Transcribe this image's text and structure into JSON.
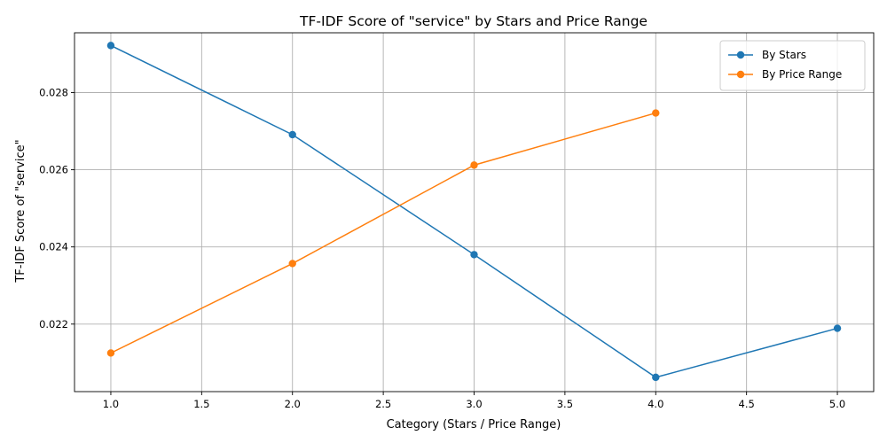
{
  "chart_data": {
    "type": "line",
    "title": "TF-IDF Score of \"service\" by Stars and Price Range",
    "xlabel": "Category (Stars / Price Range)",
    "ylabel": "TF-IDF Score of \"service\"",
    "xlim": [
      0.8,
      5.2
    ],
    "ylim": [
      0.02025,
      0.02955
    ],
    "xticks": [
      1.0,
      1.5,
      2.0,
      2.5,
      3.0,
      3.5,
      4.0,
      4.5,
      5.0
    ],
    "xtick_labels": [
      "1.0",
      "1.5",
      "2.0",
      "2.5",
      "3.0",
      "3.5",
      "4.0",
      "4.5",
      "5.0"
    ],
    "yticks": [
      0.022,
      0.024,
      0.026,
      0.028
    ],
    "ytick_labels": [
      "0.022",
      "0.024",
      "0.026",
      "0.028"
    ],
    "grid": true,
    "legend_position": "top-right",
    "series": [
      {
        "name": "By Stars",
        "color": "#1f77b4",
        "x": [
          1,
          2,
          3,
          4,
          5
        ],
        "y": [
          0.02922,
          0.02691,
          0.0238,
          0.02062,
          0.02189
        ]
      },
      {
        "name": "By Price Range",
        "color": "#ff7f0e",
        "x": [
          1,
          2,
          3,
          4
        ],
        "y": [
          0.02125,
          0.02357,
          0.02612,
          0.02747
        ]
      }
    ]
  }
}
